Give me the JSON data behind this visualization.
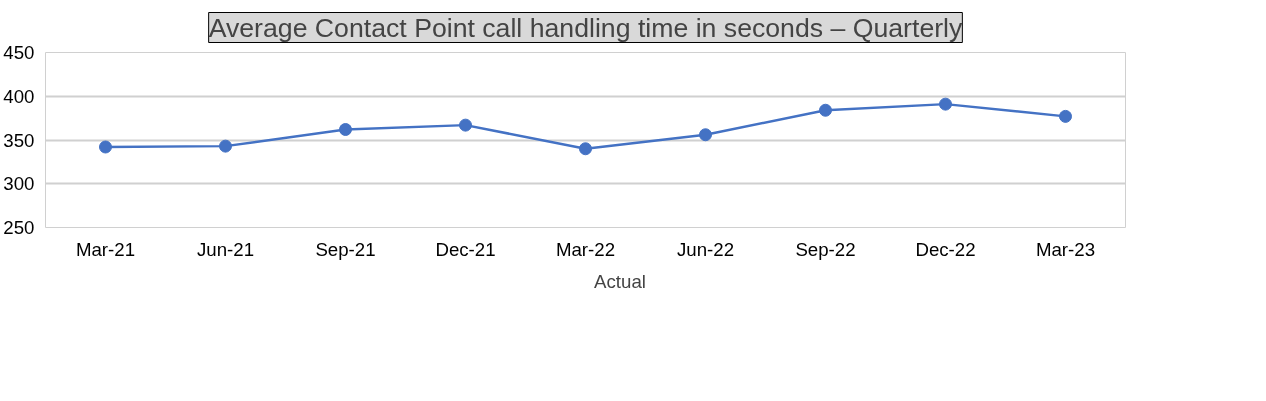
{
  "chart_data": {
    "type": "line",
    "title": "Average Contact Point call handling time in seconds – Quarterly",
    "categories": [
      "Mar-21",
      "Jun-21",
      "Sep-21",
      "Dec-21",
      "Mar-22",
      "Jun-22",
      "Sep-22",
      "Dec-22",
      "Mar-23"
    ],
    "series": [
      {
        "name": "Actual",
        "color": "#4472c4",
        "values": [
          342,
          343,
          362,
          367,
          340,
          356,
          384,
          391,
          377
        ]
      }
    ],
    "ylim": [
      250,
      450
    ],
    "yticks": [
      250,
      300,
      350,
      400,
      450
    ],
    "grid": "y",
    "legend": "bottom",
    "marker": "circle",
    "line_style": "solid"
  }
}
